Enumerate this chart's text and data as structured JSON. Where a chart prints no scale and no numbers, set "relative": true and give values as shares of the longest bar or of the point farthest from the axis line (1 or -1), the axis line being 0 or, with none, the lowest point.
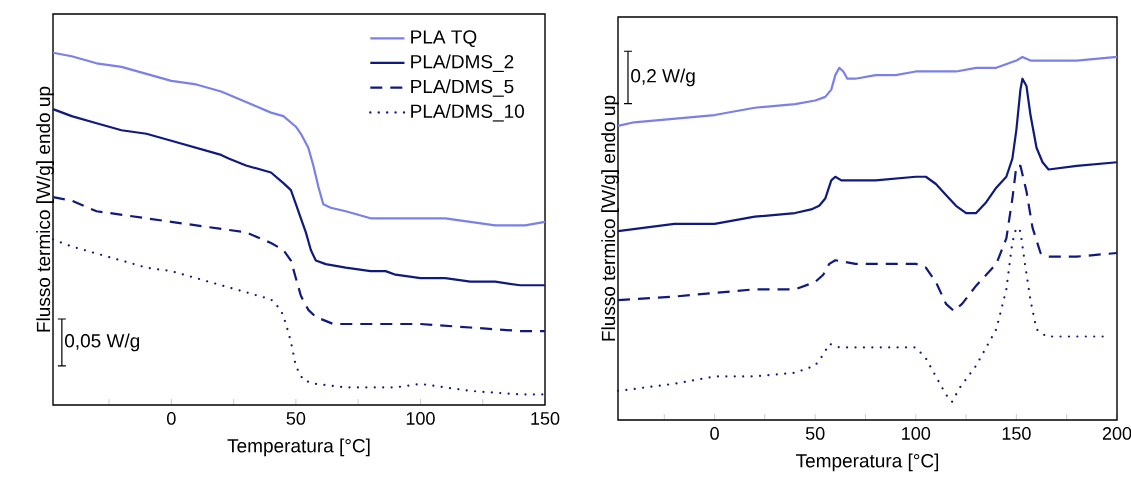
{
  "chart_data": [
    {
      "type": "line",
      "relative": true,
      "xlabel": "Temperatura [°C]",
      "ylabel": "Flusso termico [W/g] endo up",
      "xlim": [
        -47.5,
        150
      ],
      "xticks": [
        {
          "value": -25,
          "label": null
        },
        0,
        {
          "value": 25,
          "label": null
        },
        50,
        {
          "value": 75,
          "label": null
        },
        100,
        {
          "value": 125,
          "label": null
        },
        150
      ],
      "legend": "top right",
      "marker": "none",
      "annotations": [
        "0,05 W/g"
      ],
      "series": [
        {
          "name": "PLA TQ",
          "color": "#7b80e8",
          "line_style": "solid",
          "x": [
            -47.5,
            -40,
            -30,
            -20,
            -10,
            0,
            10,
            20,
            30,
            40,
            45,
            50,
            52,
            55,
            57,
            59,
            61,
            64,
            70,
            80,
            90,
            100,
            110,
            120,
            130,
            137,
            142,
            150
          ],
          "values": [
            1.0,
            0.99,
            0.97,
            0.96,
            0.94,
            0.92,
            0.91,
            0.89,
            0.86,
            0.83,
            0.82,
            0.79,
            0.77,
            0.73,
            0.68,
            0.62,
            0.57,
            0.56,
            0.55,
            0.53,
            0.53,
            0.53,
            0.53,
            0.52,
            0.51,
            0.51,
            0.51,
            0.52
          ]
        },
        {
          "name": "PLA/DMS_2",
          "color": "#0f1a7c",
          "line_style": "solid",
          "x": [
            -47.5,
            -40,
            -30,
            -20,
            -10,
            0,
            10,
            20,
            23,
            30,
            40,
            45,
            48,
            50,
            52,
            54,
            56,
            58,
            62,
            70,
            80,
            86,
            90,
            100,
            110,
            120,
            130,
            140,
            150
          ],
          "values": [
            0.84,
            0.82,
            0.8,
            0.78,
            0.77,
            0.75,
            0.73,
            0.71,
            0.7,
            0.68,
            0.66,
            0.63,
            0.61,
            0.57,
            0.53,
            0.49,
            0.44,
            0.41,
            0.4,
            0.39,
            0.38,
            0.38,
            0.37,
            0.36,
            0.36,
            0.35,
            0.35,
            0.34,
            0.34
          ]
        },
        {
          "name": "PLA/DMS_5",
          "color": "#0f1a7c",
          "line_style": "dashed",
          "x": [
            -47.5,
            -40,
            -30,
            -20,
            -10,
            0,
            10,
            20,
            30,
            40,
            45,
            48,
            50,
            52,
            55,
            58,
            65,
            80,
            100,
            120,
            140,
            150
          ],
          "values": [
            0.59,
            0.58,
            0.55,
            0.54,
            0.53,
            0.52,
            0.51,
            0.5,
            0.49,
            0.46,
            0.44,
            0.41,
            0.36,
            0.31,
            0.27,
            0.25,
            0.23,
            0.23,
            0.23,
            0.22,
            0.21,
            0.21
          ]
        },
        {
          "name": "PLA/DMS_10",
          "color": "#0f1a7c",
          "line_style": "dotted",
          "x": [
            -47.5,
            -40,
            -30,
            -20,
            -10,
            0,
            10,
            20,
            30,
            40,
            44,
            46,
            48,
            50,
            53,
            58,
            70,
            90,
            100,
            110,
            120,
            140,
            150
          ],
          "values": [
            0.47,
            0.45,
            0.43,
            0.41,
            0.39,
            0.38,
            0.36,
            0.34,
            0.32,
            0.3,
            0.27,
            0.23,
            0.18,
            0.11,
            0.07,
            0.06,
            0.05,
            0.05,
            0.06,
            0.05,
            0.04,
            0.03,
            0.03
          ]
        }
      ]
    },
    {
      "type": "line",
      "relative": true,
      "xlabel": "Temperatura [°C]",
      "ylabel": "Flusso termico [W/g] endo up",
      "xlim": [
        -48,
        200
      ],
      "xticks": [
        {
          "value": -25,
          "label": null
        },
        0,
        {
          "value": 25,
          "label": null
        },
        50,
        {
          "value": 75,
          "label": null
        },
        100,
        {
          "value": 125,
          "label": null
        },
        150,
        {
          "value": 175,
          "label": null
        },
        200
      ],
      "marker": "none",
      "annotations": [
        "0,2 W/g"
      ],
      "series": [
        {
          "color": "#7b80e8",
          "line_style": "solid",
          "x": [
            -48,
            -40,
            -20,
            0,
            20,
            40,
            50,
            55,
            58,
            60,
            62,
            64,
            66,
            70,
            80,
            90,
            100,
            110,
            120,
            130,
            140,
            145,
            150,
            153,
            157,
            162,
            170,
            180,
            200
          ],
          "values": [
            0.81,
            0.82,
            0.83,
            0.84,
            0.86,
            0.87,
            0.88,
            0.89,
            0.91,
            0.95,
            0.97,
            0.96,
            0.94,
            0.94,
            0.95,
            0.95,
            0.96,
            0.96,
            0.96,
            0.97,
            0.97,
            0.98,
            0.99,
            1.0,
            0.99,
            0.99,
            0.99,
            0.99,
            1.0
          ]
        },
        {
          "color": "#0f1a7c",
          "line_style": "solid",
          "x": [
            -48,
            -20,
            0,
            20,
            40,
            48,
            52,
            55,
            58,
            60,
            63,
            66,
            80,
            100,
            105,
            110,
            115,
            120,
            125,
            130,
            135,
            140,
            145,
            148,
            150,
            152,
            153,
            155,
            157,
            160,
            163,
            166,
            180,
            200
          ],
          "values": [
            0.52,
            0.54,
            0.54,
            0.56,
            0.57,
            0.58,
            0.59,
            0.61,
            0.66,
            0.67,
            0.66,
            0.66,
            0.66,
            0.67,
            0.67,
            0.65,
            0.62,
            0.59,
            0.57,
            0.57,
            0.6,
            0.64,
            0.67,
            0.72,
            0.8,
            0.91,
            0.94,
            0.92,
            0.84,
            0.75,
            0.71,
            0.69,
            0.7,
            0.71
          ]
        },
        {
          "color": "#0f1a7c",
          "line_style": "dashed",
          "x": [
            -48,
            -20,
            0,
            20,
            40,
            50,
            54,
            57,
            60,
            70,
            100,
            105,
            110,
            115,
            119,
            123,
            130,
            140,
            145,
            148,
            150,
            152,
            155,
            158,
            162,
            166,
            180,
            200
          ],
          "values": [
            0.33,
            0.34,
            0.35,
            0.36,
            0.36,
            0.38,
            0.4,
            0.43,
            0.44,
            0.43,
            0.43,
            0.42,
            0.38,
            0.32,
            0.3,
            0.32,
            0.37,
            0.43,
            0.5,
            0.61,
            0.7,
            0.7,
            0.63,
            0.53,
            0.46,
            0.45,
            0.45,
            0.46
          ]
        },
        {
          "color": "#0f1a7c",
          "line_style": "dotted",
          "x": [
            -48,
            -20,
            0,
            20,
            40,
            50,
            54,
            57,
            62,
            80,
            100,
            105,
            110,
            115,
            118,
            122,
            130,
            140,
            145,
            148,
            150,
            152,
            154,
            157,
            160,
            165,
            180,
            195
          ],
          "values": [
            0.08,
            0.1,
            0.12,
            0.12,
            0.13,
            0.15,
            0.18,
            0.21,
            0.2,
            0.2,
            0.2,
            0.17,
            0.12,
            0.07,
            0.05,
            0.09,
            0.15,
            0.25,
            0.36,
            0.49,
            0.53,
            0.52,
            0.44,
            0.33,
            0.25,
            0.23,
            0.23,
            0.23
          ]
        }
      ]
    }
  ]
}
